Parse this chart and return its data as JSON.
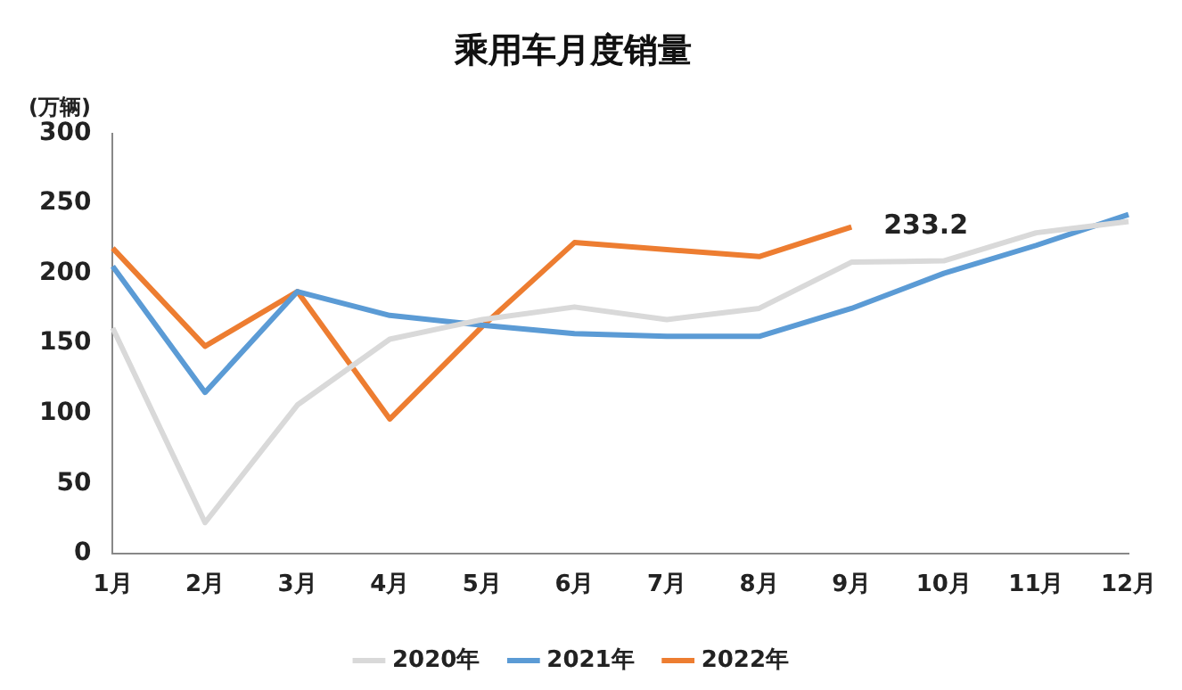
{
  "chart_data": {
    "type": "line",
    "title": "乘用车月度销量",
    "ylabel": "(万辆)",
    "categories": [
      "1月",
      "2月",
      "3月",
      "4月",
      "5月",
      "6月",
      "7月",
      "8月",
      "9月",
      "10月",
      "11月",
      "12月"
    ],
    "series": [
      {
        "name": "2020年",
        "color": "#d9d9d9",
        "values": [
          161,
          22,
          106,
          153,
          167,
          176,
          167,
          175,
          208,
          209,
          229,
          237
        ]
      },
      {
        "name": "2021年",
        "color": "#5b9bd5",
        "values": [
          205,
          115,
          187,
          170,
          163,
          157,
          155,
          155,
          175,
          200,
          220,
          242
        ]
      },
      {
        "name": "2022年",
        "color": "#ed7d31",
        "values": [
          218,
          148,
          187,
          96,
          162,
          222,
          217,
          212,
          233.2,
          null,
          null,
          null
        ]
      }
    ],
    "annotations": [
      {
        "text": "233.2",
        "x": "9月",
        "y": 233.2
      }
    ],
    "ylim": [
      0,
      300
    ],
    "yticks": [
      0,
      50,
      100,
      150,
      200,
      250,
      300
    ],
    "grid": false,
    "legend": "bottom",
    "marker": "none",
    "line_style": "solid"
  }
}
